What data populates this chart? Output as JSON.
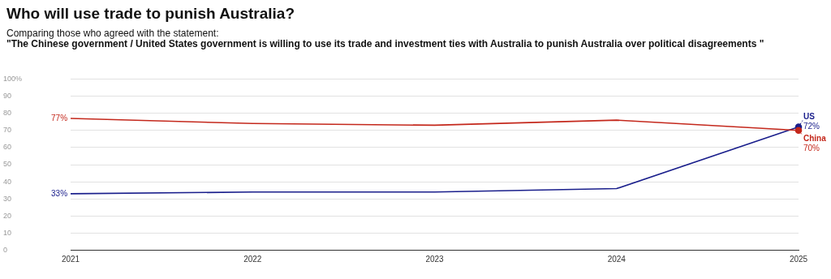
{
  "chart_data": {
    "type": "line",
    "title": "Who will use trade to punish Australia?",
    "subtitle": "Comparing those who agreed with the statement:",
    "annotations": [
      "\"The Chinese government / United States government is willing to use its trade and investment ties with Australia to punish Australia over political disagreements \""
    ],
    "categories": [
      "2021",
      "2022",
      "2023",
      "2024",
      "2025"
    ],
    "series": [
      {
        "name": "China",
        "color": "#c4281c",
        "values": [
          77,
          74,
          73,
          76,
          70
        ],
        "value_labels": [
          "77%",
          null,
          null,
          null,
          "70%"
        ]
      },
      {
        "name": "US",
        "color": "#1a1f8c",
        "values": [
          33,
          34,
          34,
          36,
          72
        ],
        "value_labels": [
          "33%",
          null,
          null,
          null,
          "72%"
        ]
      }
    ],
    "ylim": [
      0,
      100
    ],
    "yticks": [
      0,
      10,
      20,
      30,
      40,
      50,
      60,
      70,
      80,
      {
        "value": 90,
        "label": "90"
      },
      {
        "value": 100,
        "label": "100%"
      }
    ],
    "grid": "y",
    "legend": false
  }
}
